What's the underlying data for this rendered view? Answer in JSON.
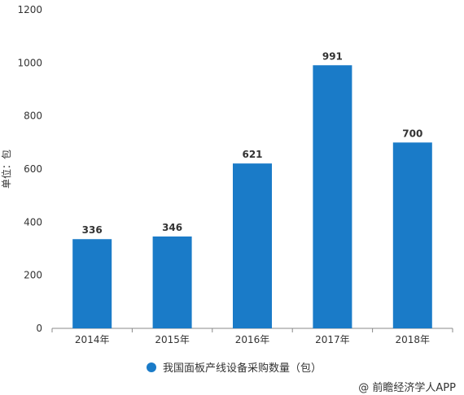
{
  "chart_data": {
    "type": "bar",
    "categories": [
      "2014年",
      "2015年",
      "2016年",
      "2017年",
      "2018年"
    ],
    "series": [
      {
        "name": "我国面板产线设备采购数量（包）",
        "values": [
          336,
          346,
          621,
          991,
          700
        ]
      }
    ],
    "data_labels": [
      "336",
      "346",
      "621",
      "991",
      "700"
    ],
    "ylabel": "单位：包",
    "ylim": [
      0,
      1200
    ],
    "yticks": [
      0,
      200,
      400,
      600,
      800,
      1000,
      1200
    ],
    "ytick_labels": [
      "0",
      "200",
      "400",
      "600",
      "800",
      "1000",
      "1200"
    ],
    "grid": false,
    "legend_position": "bottom",
    "color": "#1a7bc8"
  },
  "source_note": "@ 前瞻经济学人APP"
}
